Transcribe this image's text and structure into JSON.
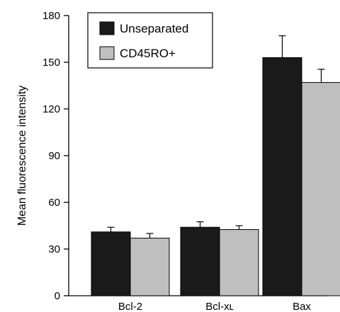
{
  "chart_data": {
    "type": "bar",
    "categories": [
      "Bcl-2",
      "Bcl-xʟ",
      "Bax"
    ],
    "series": [
      {
        "name": "Unseparated",
        "values": [
          41,
          44,
          153
        ],
        "errors": [
          3,
          3.5,
          14
        ],
        "color": "#1a1a1a"
      },
      {
        "name": "CD45RO+",
        "values": [
          37,
          42.5,
          137
        ],
        "errors": [
          3,
          2.5,
          8.5
        ],
        "color": "#bfbfbf"
      }
    ],
    "title": "",
    "xlabel": "",
    "ylabel": "Mean fluorescence intensity",
    "ylim": [
      0,
      180
    ],
    "yticks": [
      "0",
      "30",
      "60",
      "90",
      "120",
      "150",
      "180"
    ],
    "grid": false,
    "legend_position": "top-left"
  }
}
